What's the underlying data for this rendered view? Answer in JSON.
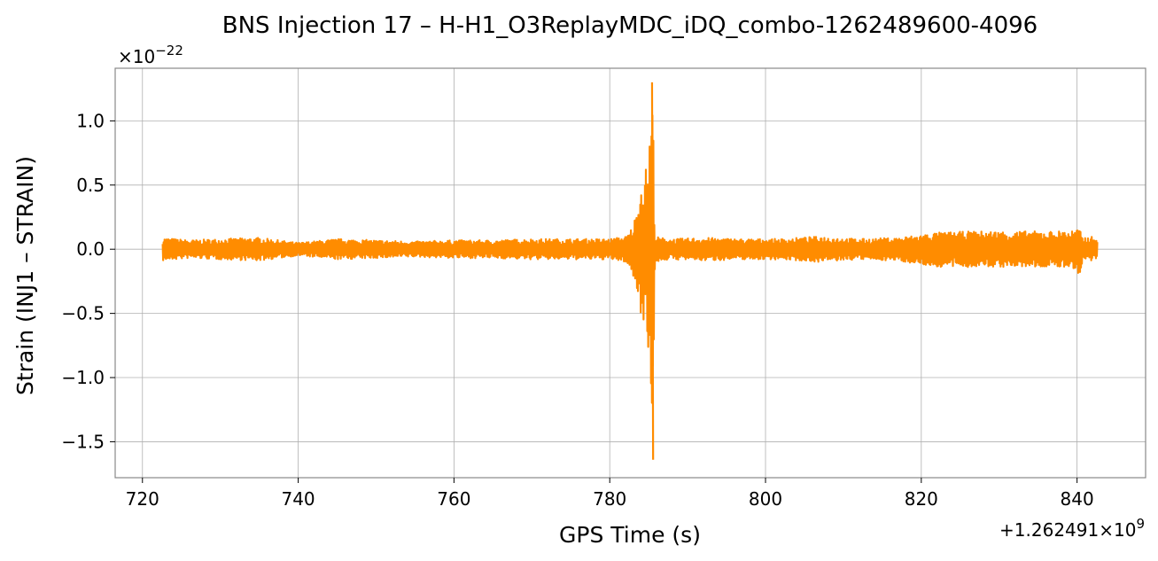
{
  "chart_data": {
    "type": "line",
    "title": "BNS Injection 17 – H-H1_O3ReplayMDC_iDQ_combo-1262489600-4096",
    "xlabel": "GPS Time (s)",
    "ylabel": "Strain (INJ1 – STRAIN)",
    "x_offset_label": "+1.262491×10",
    "x_offset_exponent": "9",
    "y_scale_label": "×10",
    "y_scale_exponent": "−22",
    "xlim": [
      716.5,
      848.8
    ],
    "ylim": [
      -1.78,
      1.41
    ],
    "xticks": [
      720,
      740,
      760,
      780,
      800,
      820,
      840
    ],
    "xtick_labels": [
      "720",
      "740",
      "760",
      "780",
      "800",
      "820",
      "840"
    ],
    "yticks": [
      -1.5,
      -1.0,
      -0.5,
      0.0,
      0.5,
      1.0
    ],
    "ytick_labels": [
      "−1.5",
      "−1.0",
      "−0.5",
      "0.0",
      "0.5",
      "1.0"
    ],
    "grid": true,
    "line_color": "#ff8c00",
    "series": [
      {
        "x": [
          722.6,
          726,
          730,
          735,
          740,
          745,
          750,
          755,
          760,
          765,
          770,
          775,
          780,
          782.0,
          782.6,
          783.0,
          783.4,
          783.8,
          784.2,
          784.6,
          785.0,
          785.3,
          785.5,
          785.8,
          786.5,
          788,
          792,
          797,
          802,
          807,
          812,
          817,
          822,
          827,
          832,
          837,
          839.8,
          840.3,
          840.7,
          841.5,
          842.6
        ],
        "y_upper": [
          0.09,
          0.07,
          0.08,
          0.09,
          0.05,
          0.08,
          0.07,
          0.06,
          0.07,
          0.07,
          0.08,
          0.08,
          0.08,
          0.1,
          0.14,
          0.2,
          0.28,
          0.45,
          0.6,
          0.62,
          0.8,
          1.02,
          1.3,
          0.1,
          0.09,
          0.08,
          0.09,
          0.08,
          0.08,
          0.1,
          0.08,
          0.09,
          0.13,
          0.14,
          0.14,
          0.14,
          0.15,
          0.16,
          0.09,
          0.1,
          0.09
        ],
        "y_lower": [
          -0.09,
          -0.07,
          -0.08,
          -0.09,
          -0.05,
          -0.08,
          -0.07,
          -0.06,
          -0.07,
          -0.07,
          -0.08,
          -0.08,
          -0.08,
          -0.1,
          -0.15,
          -0.22,
          -0.3,
          -0.45,
          -0.55,
          -0.58,
          -0.8,
          -1.1,
          -1.64,
          -0.11,
          -0.09,
          -0.08,
          -0.09,
          -0.08,
          -0.08,
          -0.1,
          -0.08,
          -0.09,
          -0.14,
          -0.14,
          -0.14,
          -0.14,
          -0.15,
          -0.25,
          -0.1,
          -0.1,
          -0.09
        ]
      }
    ]
  }
}
